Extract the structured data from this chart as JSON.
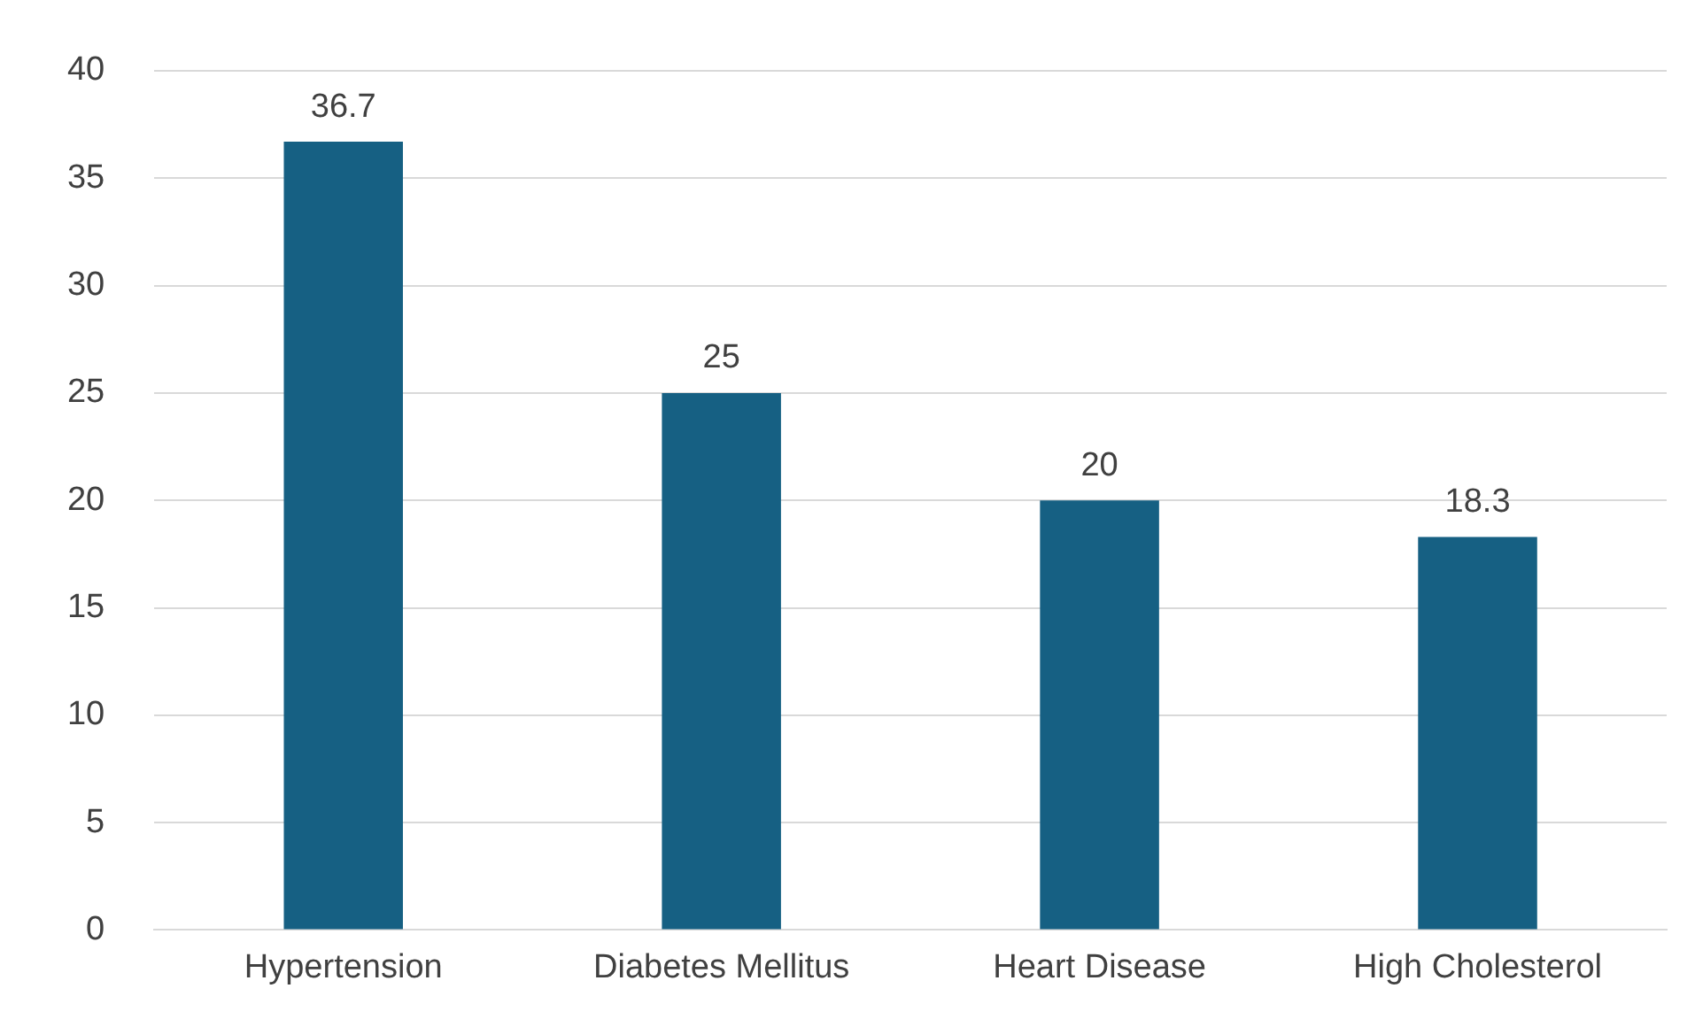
{
  "chart_data": {
    "type": "bar",
    "categories": [
      "Hypertension",
      "Diabetes Mellitus",
      "Heart Disease",
      "High Cholesterol"
    ],
    "values": [
      36.7,
      25,
      20,
      18.3
    ],
    "color": "#166083",
    "ylim": [
      0,
      40
    ],
    "yticks": [
      0,
      5,
      10,
      15,
      20,
      25,
      30,
      35,
      40
    ],
    "grid": "y",
    "legend": false,
    "data_labels": true
  }
}
